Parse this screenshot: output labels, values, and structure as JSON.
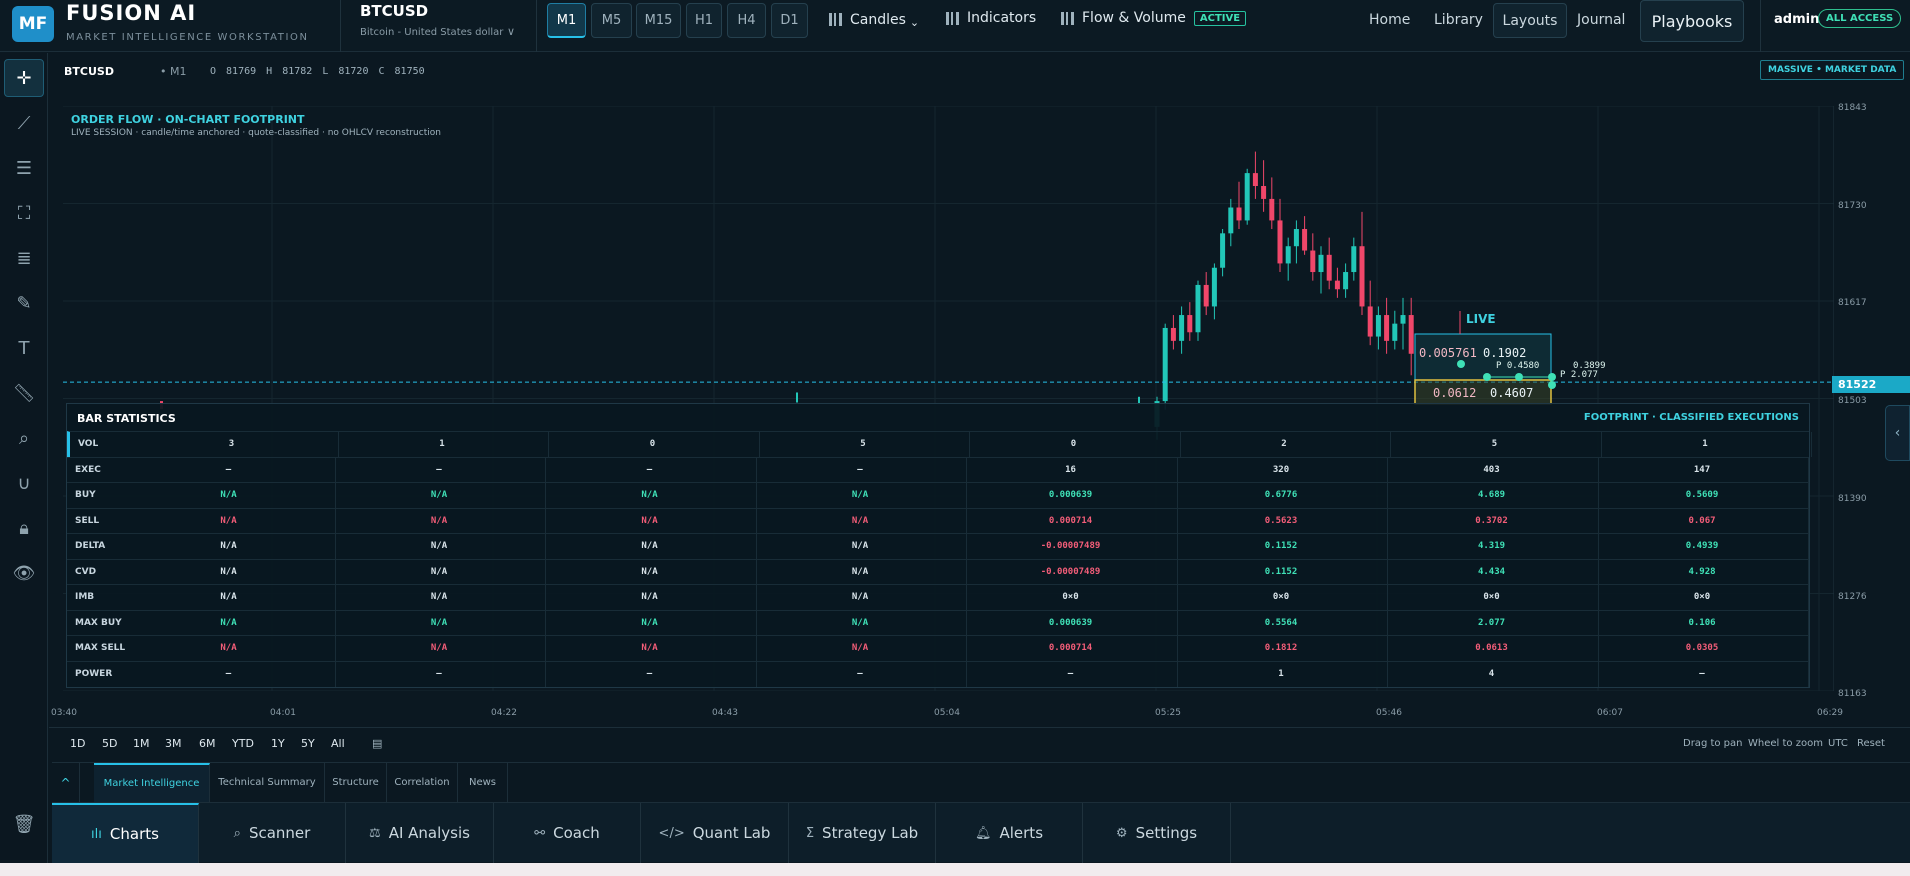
{
  "app": {
    "logo": "MF",
    "name": "FUSION AI",
    "subtitle": "MARKET INTELLIGENCE WORKSTATION"
  },
  "symbol": {
    "ticker": "BTCUSD",
    "description": "Bitcoin - United States dollar",
    "caret": "∨"
  },
  "timeframes": [
    "M1",
    "M5",
    "M15",
    "H1",
    "H4",
    "D1"
  ],
  "active_timeframe": "M1",
  "toolbar": {
    "candles": "Candles",
    "candles_caret": "⌄",
    "indicators": "Indicators",
    "flow": "Flow & Volume",
    "flow_badge": "ACTIVE"
  },
  "nav": {
    "home": "Home",
    "library": "Library",
    "layouts": "Layouts",
    "journal": "Journal",
    "playbooks": "Playbooks"
  },
  "user": {
    "name": "admin",
    "badge": "ALL ACCESS"
  },
  "left_tools": [
    "crosshair-icon",
    "trend-line-icon",
    "sliders-icon",
    "node-icon",
    "fib-icon",
    "pencil-icon",
    "text-icon",
    "ruler-icon",
    "zoom-icon",
    "magnet-icon",
    "lock-icon",
    "eye-icon",
    "trash-icon"
  ],
  "info": {
    "symbol": "BTCUSD",
    "timeframe": "• M1",
    "ohlc": "O 81769  H 81782  L 81720  C 81750",
    "data_badge": "MASSIVE • MARKET DATA"
  },
  "overlay": {
    "title": "ORDER FLOW · ON-CHART FOOTPRINT",
    "subtitle": "LIVE SESSION · candle/time anchored · quote-classified · no OHLCV reconstruction"
  },
  "chart": {
    "price_labels": [
      "81843",
      "81730",
      "81617",
      "81503",
      "81390",
      "81276",
      "81163"
    ],
    "current_price": "81522",
    "time_labels": [
      "03:40",
      "04:01",
      "04:22",
      "04:43",
      "05:04",
      "05:25",
      "05:46",
      "06:07",
      "06:29"
    ],
    "live_label": "LIVE",
    "footprint": {
      "top_left": "0.005761",
      "top_right": "0.1902",
      "bottom_left": "0.0612",
      "bottom_right": "0.4607",
      "p1": "P 0.4580",
      "p2": "P 2.077",
      "p3": "0.3899"
    }
  },
  "chart_data": {
    "type": "candlestick",
    "y_range": [
      81163,
      81843
    ],
    "last_price": 81522,
    "candles": [
      [
        81470,
        81505,
        81455,
        81500
      ],
      [
        81500,
        81590,
        81490,
        81585
      ],
      [
        81585,
        81600,
        81560,
        81570
      ],
      [
        81570,
        81610,
        81555,
        81600
      ],
      [
        81600,
        81615,
        81570,
        81580
      ],
      [
        81580,
        81640,
        81570,
        81635
      ],
      [
        81635,
        81650,
        81600,
        81610
      ],
      [
        81610,
        81660,
        81595,
        81655
      ],
      [
        81655,
        81700,
        81645,
        81695
      ],
      [
        81695,
        81735,
        81680,
        81725
      ],
      [
        81725,
        81755,
        81700,
        81710
      ],
      [
        81710,
        81770,
        81705,
        81765
      ],
      [
        81765,
        81790,
        81735,
        81750
      ],
      [
        81750,
        81780,
        81720,
        81735
      ],
      [
        81735,
        81760,
        81700,
        81710
      ],
      [
        81710,
        81735,
        81650,
        81660
      ],
      [
        81660,
        81690,
        81640,
        81680
      ],
      [
        81680,
        81710,
        81660,
        81700
      ],
      [
        81700,
        81715,
        81670,
        81675
      ],
      [
        81675,
        81695,
        81640,
        81650
      ],
      [
        81650,
        81680,
        81625,
        81670
      ],
      [
        81670,
        81690,
        81630,
        81640
      ],
      [
        81640,
        81655,
        81620,
        81630
      ],
      [
        81630,
        81660,
        81620,
        81650
      ],
      [
        81650,
        81690,
        81640,
        81680
      ],
      [
        81680,
        81720,
        81600,
        81610
      ],
      [
        81610,
        81640,
        81565,
        81575
      ],
      [
        81575,
        81610,
        81560,
        81600
      ],
      [
        81600,
        81620,
        81555,
        81570
      ],
      [
        81570,
        81605,
        81560,
        81590
      ],
      [
        81590,
        81620,
        81560,
        81600
      ],
      [
        81600,
        81620,
        81530,
        81555
      ]
    ]
  },
  "stats": {
    "title": "BAR STATISTICS",
    "right_title": "FOOTPRINT · CLASSIFIED EXECUTIONS",
    "rows": [
      {
        "label": "VOL",
        "values": [
          "3",
          "1",
          "0",
          "5",
          "0",
          "2",
          "5",
          "1"
        ]
      },
      {
        "label": "EXEC",
        "values": [
          "–",
          "–",
          "–",
          "–",
          "16",
          "320",
          "403",
          "147"
        ]
      },
      {
        "label": "BUY",
        "values": [
          "N/A",
          "N/A",
          "N/A",
          "N/A",
          "0.000639",
          "0.6776",
          "4.689",
          "0.5609"
        ]
      },
      {
        "label": "SELL",
        "values": [
          "N/A",
          "N/A",
          "N/A",
          "N/A",
          "0.000714",
          "0.5623",
          "0.3702",
          "0.067"
        ]
      },
      {
        "label": "DELTA",
        "values": [
          "N/A",
          "N/A",
          "N/A",
          "N/A",
          "-0.00007489",
          "0.1152",
          "4.319",
          "0.4939"
        ]
      },
      {
        "label": "CVD",
        "values": [
          "N/A",
          "N/A",
          "N/A",
          "N/A",
          "-0.00007489",
          "0.1152",
          "4.434",
          "4.928"
        ]
      },
      {
        "label": "IMB",
        "values": [
          "N/A",
          "N/A",
          "N/A",
          "N/A",
          "0×0",
          "0×0",
          "0×0",
          "0×0"
        ]
      },
      {
        "label": "MAX BUY",
        "values": [
          "N/A",
          "N/A",
          "N/A",
          "N/A",
          "0.000639",
          "0.5564",
          "2.077",
          "0.106"
        ]
      },
      {
        "label": "MAX SELL",
        "values": [
          "N/A",
          "N/A",
          "N/A",
          "N/A",
          "0.000714",
          "0.1812",
          "0.0613",
          "0.0305"
        ]
      },
      {
        "label": "POWER",
        "values": [
          "–",
          "–",
          "–",
          "–",
          "–",
          "1",
          "4",
          "–"
        ]
      }
    ]
  },
  "ranges": [
    "1D",
    "5D",
    "1M",
    "3M",
    "6M",
    "YTD",
    "1Y",
    "5Y",
    "All"
  ],
  "range_hints": {
    "pan": "Drag to pan",
    "zoom": "Wheel to zoom",
    "tz": "UTC",
    "reset": "Reset"
  },
  "panel_tabs": [
    "^",
    "Market Intelligence",
    "Technical Summary",
    "Structure",
    "Correlation",
    "News"
  ],
  "bottom_nav": [
    {
      "label": "Charts",
      "icon": "bar-chart-icon",
      "glyph": "ılı"
    },
    {
      "label": "Scanner",
      "icon": "search-icon",
      "glyph": "⌕"
    },
    {
      "label": "AI Analysis",
      "icon": "ai-icon",
      "glyph": "⚖"
    },
    {
      "label": "Coach",
      "icon": "binoculars-icon",
      "glyph": "⚯"
    },
    {
      "label": "Quant Lab",
      "icon": "code-icon",
      "glyph": "</>"
    },
    {
      "label": "Strategy Lab",
      "icon": "sigma-icon",
      "glyph": "Σ"
    },
    {
      "label": "Alerts",
      "icon": "bell-icon",
      "glyph": "🔔︎"
    },
    {
      "label": "Settings",
      "icon": "gear-icon",
      "glyph": "⚙"
    }
  ],
  "colors": {
    "accent": "#27c0e8",
    "up": "#22c7b8",
    "down": "#f0476a",
    "bg": "#0b1821"
  }
}
